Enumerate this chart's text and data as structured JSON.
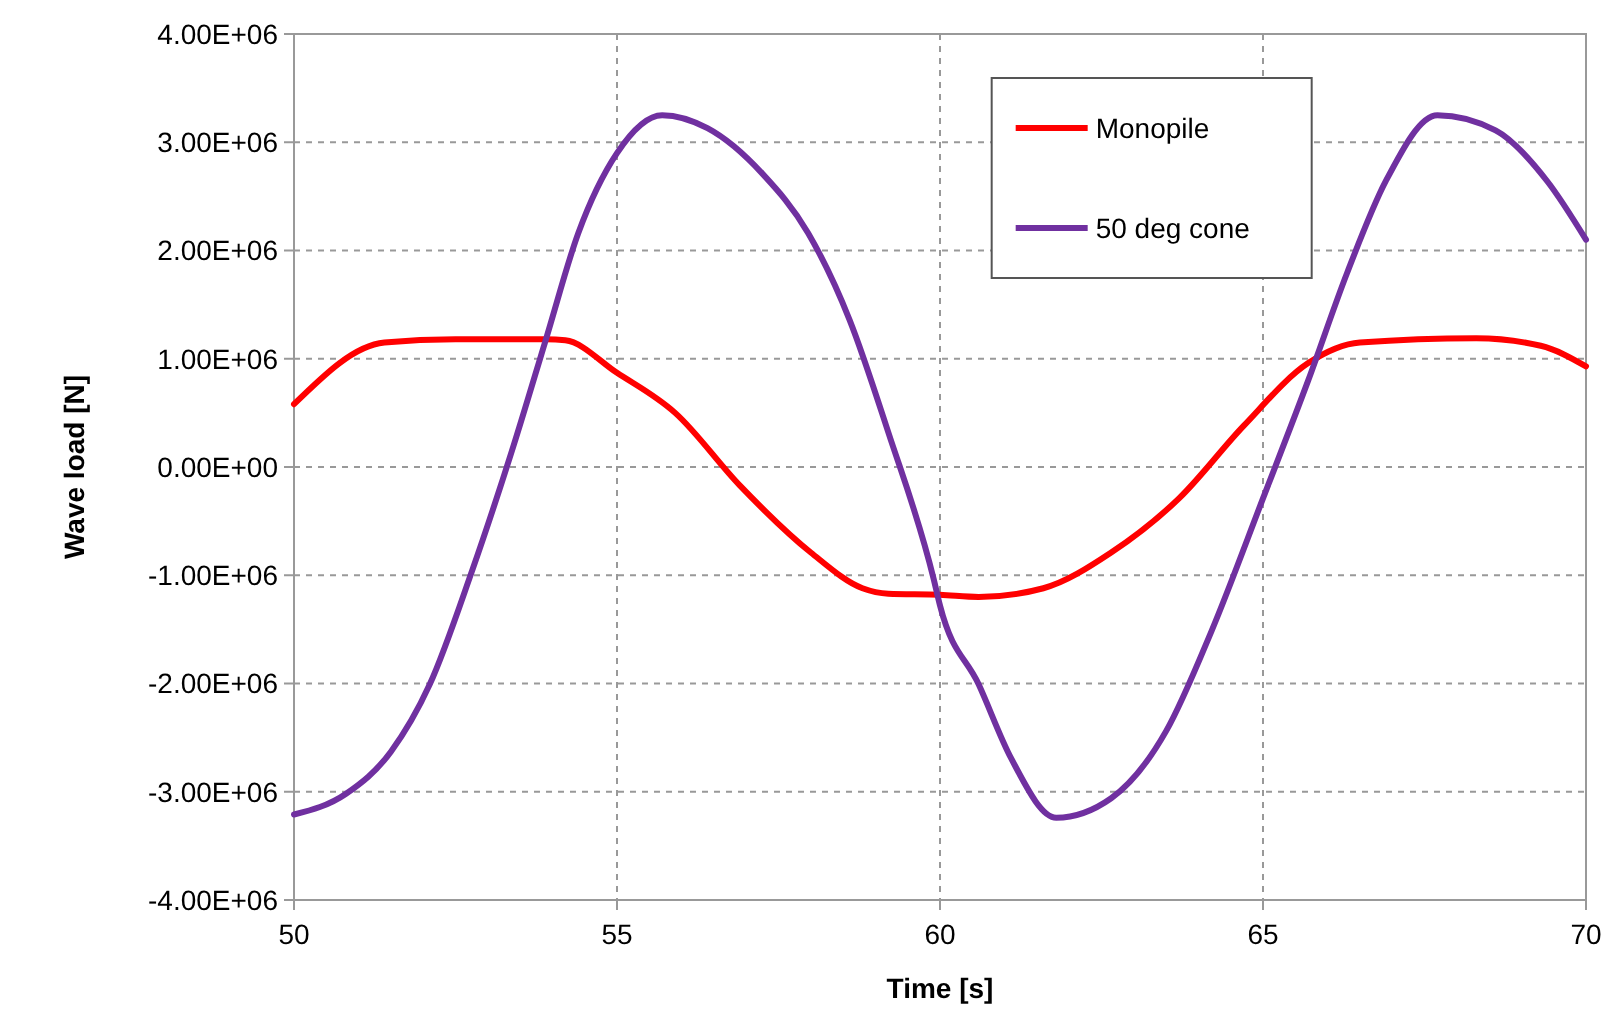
{
  "chart_data": {
    "type": "line",
    "xlabel": "Time [s]",
    "ylabel": "Wave load [N]",
    "xlim": [
      50,
      70
    ],
    "xticks": [
      50,
      55,
      60,
      65,
      70
    ],
    "ylim": [
      -4000000,
      4000000
    ],
    "yticks": [
      {
        "value": -4000000,
        "label": "-4.00E+06"
      },
      {
        "value": -3000000,
        "label": "-3.00E+06"
      },
      {
        "value": -2000000,
        "label": "-2.00E+06"
      },
      {
        "value": -1000000,
        "label": "-1.00E+06"
      },
      {
        "value": 0,
        "label": "0.00E+00"
      },
      {
        "value": 1000000,
        "label": "1.00E+06"
      },
      {
        "value": 2000000,
        "label": "2.00E+06"
      },
      {
        "value": 3000000,
        "label": "3.00E+06"
      },
      {
        "value": 4000000,
        "label": "4.00E+06"
      }
    ],
    "grid": true,
    "legend": "top right",
    "marker": "none",
    "line_style": "solid",
    "series": [
      {
        "name": "Monopile",
        "color": "#ff0000",
        "x": [
          50,
          51.4,
          52.5,
          53.9,
          54.2,
          55,
          55.9,
          56.9,
          58,
          58.8,
          59.2,
          60,
          60.6,
          61.6,
          62.65,
          63.7,
          64.7,
          65.7,
          66.5,
          68.3,
          69.3,
          70
        ],
        "values": [
          580000,
          1150000,
          1180000,
          1180000,
          1170000,
          870000,
          500000,
          -170000,
          -790000,
          -1120000,
          -1170000,
          -1180000,
          -1200000,
          -1120000,
          -790000,
          -290000,
          380000,
          960000,
          1150000,
          1190000,
          1120000,
          930000
        ]
      },
      {
        "name": "50 deg cone",
        "color": "#7030a0",
        "x": [
          50,
          50.8,
          51.5,
          52.1,
          52.75,
          53.4,
          53.9,
          54.4,
          55,
          55.7,
          56.4,
          57.25,
          57.96,
          58.6,
          59.2,
          59.9,
          60,
          60.6,
          61.1,
          61.8,
          62.65,
          63.5,
          64.2,
          65,
          65.7,
          66.3,
          66.9,
          67.7,
          68.6,
          69.4,
          70
        ],
        "values": [
          -3210000,
          -3020000,
          -2630000,
          -2010000,
          -970000,
          200000,
          1180000,
          2160000,
          2900000,
          3250000,
          3130000,
          2710000,
          2160000,
          1360000,
          320000,
          -1030000,
          -1280000,
          -2010000,
          -2690000,
          -3240000,
          -3060000,
          -2440000,
          -1520000,
          -290000,
          800000,
          1790000,
          2640000,
          3250000,
          3110000,
          2640000,
          2100000
        ]
      }
    ]
  }
}
